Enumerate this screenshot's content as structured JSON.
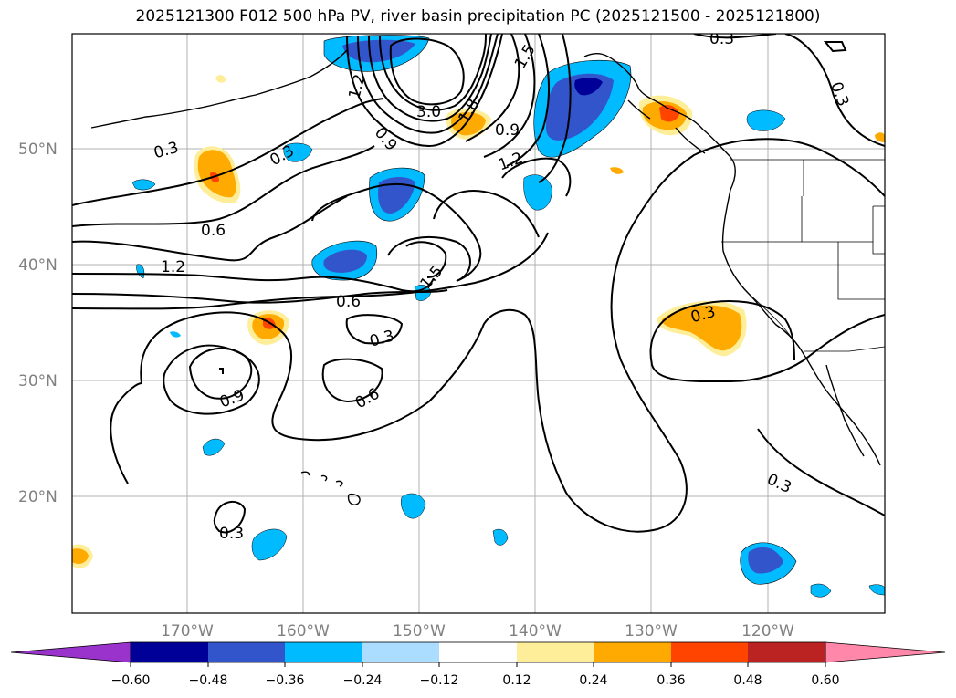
{
  "title": "2025121300 F012 500 hPa PV, river basin precipitation PC (2025121500 - 2025121800)",
  "axes": {
    "lat_labels": [
      "50°N",
      "40°N",
      "30°N",
      "20°N"
    ],
    "lon_labels": [
      "170°W",
      "160°W",
      "150°W",
      "140°W",
      "130°W",
      "120°W"
    ]
  },
  "colorbar": {
    "ticks": [
      "−0.60",
      "−0.48",
      "−0.36",
      "−0.24",
      "−0.12",
      "0.12",
      "0.24",
      "0.36",
      "0.48",
      "0.60"
    ],
    "colors": [
      "#9933cc",
      "#000099",
      "#3355cc",
      "#00bbff",
      "#aaddff",
      "#ffffff",
      "#ffee99",
      "#ffaa00",
      "#ff4400",
      "#bb2222",
      "#ff88aa"
    ]
  },
  "contour_labels": [
    "0.3",
    "0.3",
    "0.6",
    "1.2",
    "1.2",
    "3.0",
    "0.9",
    "1.5",
    "1.8",
    "0.9",
    "1.2",
    "1.5",
    "0.6",
    "0.3",
    "0.9",
    "0.6",
    "0.3",
    "0.3",
    "0.3",
    "0.3",
    "0.3"
  ]
}
